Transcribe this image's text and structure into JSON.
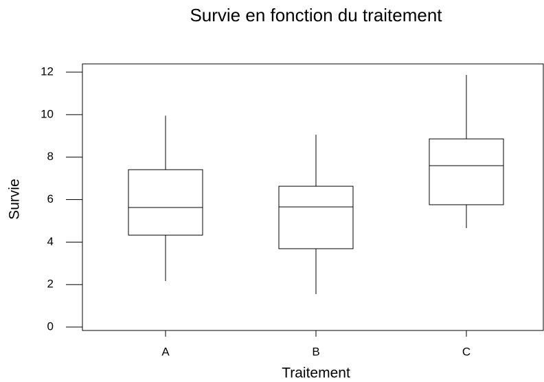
{
  "chart_data": {
    "type": "box",
    "title": "Survie en fonction du traitement",
    "x_label": "Traitement",
    "y_label": "Survie",
    "categories": [
      "A",
      "B",
      "C"
    ],
    "boxes": [
      {
        "min": 2.17,
        "q1": 4.33,
        "median": 5.63,
        "q3": 7.41,
        "max": 9.95
      },
      {
        "min": 1.55,
        "q1": 3.69,
        "median": 5.66,
        "q3": 6.63,
        "max": 9.06
      },
      {
        "min": 4.66,
        "q1": 5.76,
        "median": 7.6,
        "q3": 8.86,
        "max": 11.87
      }
    ],
    "color": "#000000",
    "ylim": [
      -0.16,
      12.39
    ],
    "yticks": [
      0,
      2,
      4,
      6,
      8,
      10,
      12
    ]
  }
}
